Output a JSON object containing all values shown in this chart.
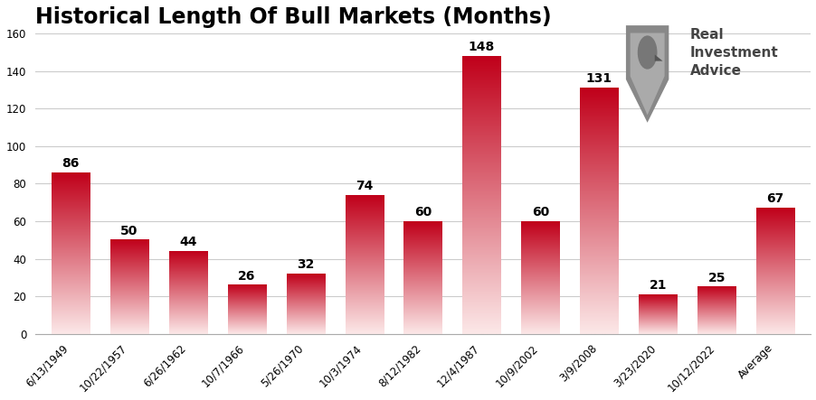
{
  "title": "Historical Length Of Bull Markets (Months)",
  "categories": [
    "6/13/1949",
    "10/22/1957",
    "6/26/1962",
    "10/7/1966",
    "5/26/1970",
    "10/3/1974",
    "8/12/1982",
    "12/4/1987",
    "10/9/2002",
    "3/9/2008",
    "3/23/2020",
    "10/12/2022",
    "Average"
  ],
  "values": [
    86,
    50,
    44,
    26,
    32,
    74,
    60,
    148,
    60,
    131,
    21,
    25,
    67
  ],
  "ylim": [
    0,
    160
  ],
  "yticks": [
    0,
    20,
    40,
    60,
    80,
    100,
    120,
    140,
    160
  ],
  "bar_color_top": "#c0001a",
  "bar_color_bottom": "#fce8e8",
  "background_color": "#ffffff",
  "title_fontsize": 17,
  "tick_fontsize": 8.5,
  "value_fontsize": 10,
  "grid_color": "#cccccc",
  "logo_text": "Real\nInvestment\nAdvice",
  "logo_text_color": "#444444",
  "logo_text_fontsize": 11
}
